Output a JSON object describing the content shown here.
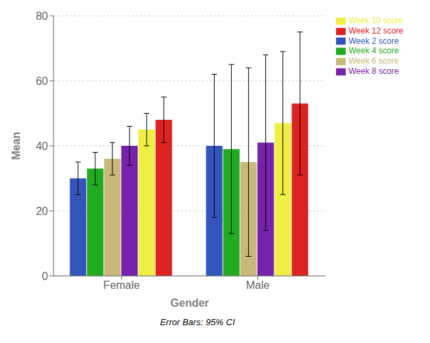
{
  "chart_data": {
    "type": "bar",
    "xlabel": "Gender",
    "ylabel": "Mean",
    "categories": [
      "Female",
      "Male"
    ],
    "series": [
      {
        "name": "Week 2 score",
        "color": "#3355bb",
        "values": [
          30,
          40
        ],
        "errors": [
          5,
          22
        ]
      },
      {
        "name": "Week 4 score",
        "color": "#22aa22",
        "values": [
          33,
          39
        ],
        "errors": [
          5,
          26
        ]
      },
      {
        "name": "Week 6 score",
        "color": "#c8b87a",
        "values": [
          36,
          35
        ],
        "errors": [
          5,
          29
        ]
      },
      {
        "name": "Week 8 score",
        "color": "#7722aa",
        "values": [
          40,
          41
        ],
        "errors": [
          6,
          27
        ]
      },
      {
        "name": "Week 10 score",
        "color": "#eeee44",
        "values": [
          45,
          47
        ],
        "errors": [
          5,
          22
        ]
      },
      {
        "name": "Week 12 score",
        "color": "#dd2222",
        "values": [
          48,
          53
        ],
        "errors": [
          7,
          22
        ]
      }
    ],
    "ylim": [
      0,
      80
    ],
    "yticks": [
      0,
      20,
      40,
      60,
      80
    ],
    "grid": true,
    "legend": "right",
    "annotation": "Error Bars: 95% CI"
  }
}
